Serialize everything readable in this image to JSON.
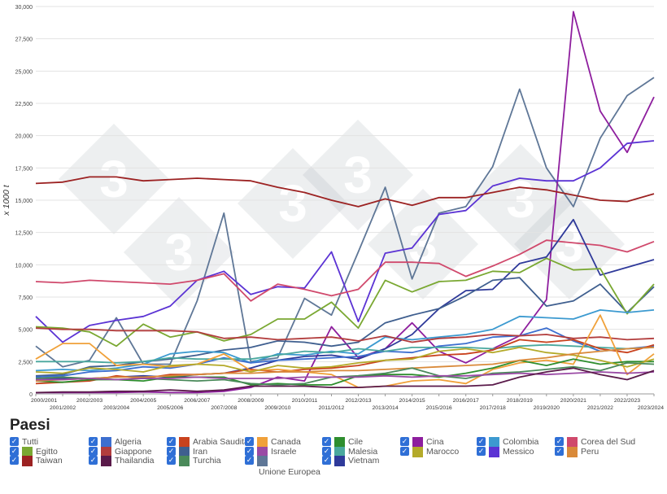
{
  "chart_data": {
    "type": "line",
    "title": "",
    "xlabel": "",
    "ylabel": "x 1000 t",
    "ylim": [
      0,
      30000
    ],
    "yticks": [
      "0",
      "2,500",
      "5,000",
      "7,500",
      "10,000",
      "12,500",
      "15,000",
      "17,500",
      "20,000",
      "22,500",
      "25,000",
      "27,500",
      "30,000"
    ],
    "categories": [
      "2000/2001",
      "2001/2002",
      "2002/2003",
      "2003/2004",
      "2004/2005",
      "2005/2006",
      "2006/2007",
      "2007/2008",
      "2008/2009",
      "2009/2010",
      "2010/2011",
      "2011/2012",
      "2012/2013",
      "2013/2014",
      "2014/2015",
      "2015/2016",
      "2016/2017",
      "2017/2018",
      "2018/2019",
      "2019/2020",
      "2020/2021",
      "2021/2022",
      "2022/2023",
      "2023/2024"
    ],
    "series": [
      {
        "name": "Unione Europea",
        "color": "#5f7797",
        "values": [
          3700,
          2100,
          2600,
          5900,
          2300,
          2300,
          7200,
          14000,
          2500,
          2800,
          7400,
          6100,
          11000,
          16000,
          8900,
          14000,
          14500,
          17600,
          23600,
          17500,
          14500,
          19800,
          23100,
          24500
        ]
      },
      {
        "name": "Cina",
        "color": "#8e1e9e",
        "values": [
          100,
          100,
          100,
          100,
          150,
          100,
          100,
          200,
          500,
          1300,
          1000,
          5200,
          2800,
          3500,
          5500,
          3300,
          2400,
          3500,
          4500,
          7300,
          29600,
          21900,
          18700,
          23000
        ]
      },
      {
        "name": "Messico",
        "color": "#5b33d4",
        "values": [
          6000,
          4000,
          5300,
          5700,
          6000,
          6800,
          8800,
          9500,
          7700,
          8300,
          8200,
          11000,
          5600,
          10900,
          11300,
          13900,
          14200,
          16100,
          16700,
          16500,
          16500,
          17500,
          19400,
          19600
        ]
      },
      {
        "name": "Taiwan",
        "color": "#9c2222",
        "values": [
          16300,
          16400,
          16800,
          16800,
          16500,
          16600,
          16700,
          16600,
          16500,
          16000,
          15600,
          15000,
          14500,
          15100,
          14600,
          15200,
          15200,
          15600,
          16000,
          15800,
          15400,
          15000,
          14900,
          15500
        ]
      },
      {
        "name": "Corea del Sud",
        "color": "#d0496c",
        "values": [
          8700,
          8600,
          8800,
          8700,
          8600,
          8500,
          8800,
          9300,
          7200,
          8500,
          8100,
          7600,
          8100,
          10200,
          10200,
          10100,
          9100,
          9900,
          10800,
          11900,
          11700,
          11500,
          11000,
          11800
        ]
      },
      {
        "name": "Vietnam",
        "color": "#2f3a9a",
        "values": [
          1200,
          1200,
          1200,
          1300,
          1400,
          1300,
          1500,
          1600,
          2000,
          2600,
          2900,
          3000,
          2700,
          3500,
          4600,
          6600,
          8000,
          8100,
          10100,
          10600,
          13500,
          9200,
          9800,
          10400
        ]
      },
      {
        "name": "Iran",
        "color": "#3f5f8f",
        "values": [
          1400,
          1500,
          2100,
          2200,
          2500,
          2700,
          3000,
          3400,
          3600,
          4100,
          4000,
          3700,
          4000,
          5500,
          6100,
          6600,
          7600,
          8800,
          9000,
          6800,
          7200,
          8500,
          6300,
          8300
        ]
      },
      {
        "name": "Egitto",
        "color": "#7aa832",
        "values": [
          5200,
          5100,
          4800,
          3700,
          5400,
          4400,
          4800,
          4100,
          4600,
          5800,
          5800,
          7100,
          5100,
          8800,
          7900,
          8700,
          8800,
          9500,
          9400,
          10500,
          9600,
          9700,
          6200,
          8500
        ]
      },
      {
        "name": "Colombia",
        "color": "#3c9ad0",
        "values": [
          1800,
          1900,
          1800,
          2000,
          2300,
          3100,
          3300,
          3200,
          2400,
          3100,
          3000,
          3300,
          3100,
          4400,
          4200,
          4400,
          4600,
          5000,
          6000,
          5900,
          5800,
          6500,
          6300,
          6500
        ]
      },
      {
        "name": "Algeria",
        "color": "#3d6fcf",
        "values": [
          1300,
          1400,
          1700,
          1800,
          2100,
          2000,
          2300,
          2800,
          2400,
          2600,
          2700,
          2800,
          2900,
          3300,
          3200,
          3700,
          3900,
          4400,
          4500,
          5100,
          4100,
          3300,
          3500,
          3700
        ]
      },
      {
        "name": "Giappone",
        "color": "#b23d3d",
        "values": [
          5100,
          5000,
          5000,
          4900,
          4900,
          4900,
          4800,
          4300,
          4400,
          4200,
          4300,
          4400,
          4100,
          4500,
          4000,
          4300,
          4400,
          4600,
          4500,
          4600,
          4300,
          4400,
          4200,
          4300
        ]
      },
      {
        "name": "Malesia",
        "color": "#4aa89e",
        "values": [
          2500,
          2500,
          2500,
          2400,
          2500,
          2800,
          2700,
          2700,
          2700,
          3000,
          3300,
          3200,
          3500,
          3300,
          3600,
          3600,
          3600,
          3500,
          3700,
          3800,
          3700,
          3600,
          3500,
          3600
        ]
      },
      {
        "name": "Arabia Saudita",
        "color": "#c9421e",
        "values": [
          800,
          900,
          1000,
          1400,
          1200,
          1500,
          1500,
          1600,
          1900,
          1700,
          1900,
          2000,
          2200,
          2600,
          2800,
          3000,
          3100,
          3400,
          4200,
          4000,
          4200,
          3500,
          3200,
          3800
        ]
      },
      {
        "name": "Canada",
        "color": "#f0a13a",
        "values": [
          2700,
          3900,
          3900,
          2200,
          2300,
          2100,
          2300,
          3100,
          1800,
          1900,
          1700,
          1500,
          500,
          600,
          1000,
          1100,
          800,
          1900,
          2400,
          2600,
          2300,
          6100,
          1500,
          3100
        ]
      },
      {
        "name": "Cile",
        "color": "#2e8e2e",
        "values": [
          1000,
          900,
          1100,
          1100,
          1000,
          1300,
          1300,
          1300,
          700,
          800,
          700,
          700,
          1400,
          1500,
          1500,
          1300,
          1600,
          2000,
          2600,
          2200,
          2700,
          2300,
          2500,
          2500
        ]
      },
      {
        "name": "Marocco",
        "color": "#b4aa2a",
        "values": [
          1700,
          1600,
          2000,
          1900,
          1700,
          2200,
          2300,
          2200,
          1700,
          2200,
          2000,
          2100,
          2400,
          2600,
          2700,
          3300,
          3500,
          3200,
          3600,
          3200,
          3000,
          2600,
          2100,
          2700
        ]
      },
      {
        "name": "Peru",
        "color": "#d98a3a",
        "values": [
          1000,
          1100,
          1200,
          1300,
          1300,
          1400,
          1500,
          1600,
          1600,
          1700,
          1700,
          1800,
          1800,
          1900,
          2000,
          2100,
          2200,
          2300,
          2600,
          2800,
          3100,
          3300,
          3500,
          3600
        ]
      },
      {
        "name": "Turchia",
        "color": "#4a8a5a",
        "values": [
          1200,
          1300,
          1200,
          1100,
          1200,
          1100,
          1000,
          1100,
          800,
          700,
          800,
          1300,
          1400,
          1600,
          2000,
          1400,
          1200,
          1600,
          1700,
          1900,
          2100,
          1800,
          2400,
          2300
        ]
      },
      {
        "name": "Israele",
        "color": "#9a4aa5",
        "values": [
          1100,
          1100,
          1200,
          1100,
          1200,
          1200,
          1300,
          1200,
          1200,
          1200,
          1300,
          1300,
          1300,
          1400,
          1300,
          1400,
          1400,
          1500,
          1600,
          1500,
          1600,
          1700,
          1600,
          1700
        ]
      },
      {
        "name": "Thailandia",
        "color": "#5a1a4a",
        "values": [
          100,
          150,
          150,
          200,
          200,
          300,
          200,
          300,
          600,
          600,
          600,
          500,
          500,
          600,
          600,
          600,
          600,
          700,
          1300,
          1700,
          2000,
          1500,
          1100,
          1800
        ]
      }
    ],
    "watermark": "3"
  },
  "legend": {
    "title": "Paesi",
    "check_glyph": "✓",
    "items": [
      {
        "label": "Tutti",
        "swatch": ""
      },
      {
        "label": "Algeria",
        "swatch": "#3d6fcf"
      },
      {
        "label": "Arabia Saudita",
        "swatch": "#c9421e"
      },
      {
        "label": "Canada",
        "swatch": "#f0a13a"
      },
      {
        "label": "Cile",
        "swatch": "#2e8e2e"
      },
      {
        "label": "Cina",
        "swatch": "#8e1e9e"
      },
      {
        "label": "Colombia",
        "swatch": "#3c9ad0"
      },
      {
        "label": "Corea del Sud",
        "swatch": "#d0496c"
      },
      {
        "label": "Egitto",
        "swatch": "#7aa832"
      },
      {
        "label": "Giappone",
        "swatch": "#b23d3d"
      },
      {
        "label": "Iran",
        "swatch": "#3f5f8f"
      },
      {
        "label": "Israele",
        "swatch": "#9a4aa5"
      },
      {
        "label": "Malesia",
        "swatch": "#4aa89e"
      },
      {
        "label": "Marocco",
        "swatch": "#b4aa2a"
      },
      {
        "label": "Messico",
        "swatch": "#5b33d4"
      },
      {
        "label": "Peru",
        "swatch": "#d98a3a"
      },
      {
        "label": "Taiwan",
        "swatch": "#9c2222"
      },
      {
        "label": "Thailandia",
        "swatch": "#5a1a4a"
      },
      {
        "label": "Turchia",
        "swatch": "#4a8a5a"
      },
      {
        "label": "",
        "swatch": "#5f7797",
        "sub": "Unione Europea"
      },
      {
        "label": "Vietnam",
        "swatch": "#2f3a9a"
      }
    ]
  }
}
